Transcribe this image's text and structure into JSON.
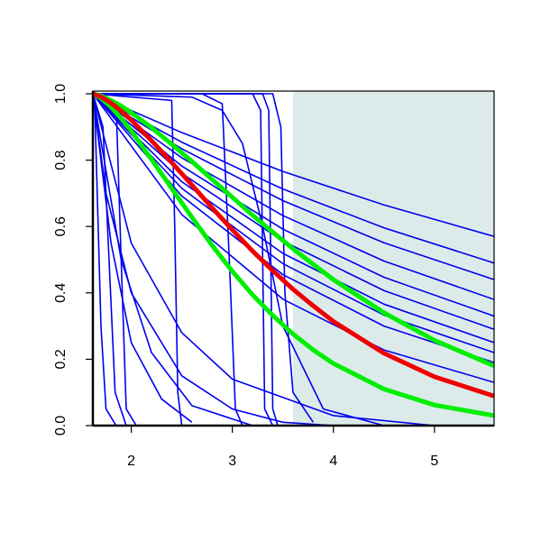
{
  "chart_data": {
    "type": "line",
    "xlim": [
      1.62,
      5.59
    ],
    "ylim": [
      0,
      1
    ],
    "xticks": [
      2,
      3,
      4,
      5
    ],
    "yticks": [
      {
        "value": 0,
        "label": "0.0"
      },
      {
        "value": 0.2,
        "label": "0.2"
      },
      {
        "value": 0.4,
        "label": "0.4"
      },
      {
        "value": 0.6,
        "label": "0.6"
      },
      {
        "value": 0.8,
        "label": "0.8"
      },
      {
        "value": 1,
        "label": "1.0"
      }
    ],
    "shade_from": 3.6,
    "shade_color": "#dcebea",
    "series": [
      {
        "color": "#0000ee",
        "x": [
          1.62,
          2.5,
          3.5,
          4.5,
          5.59
        ],
        "values": [
          1,
          0.883,
          0.766,
          0.665,
          0.57
        ]
      },
      {
        "color": "#0000ee",
        "x": [
          1.62,
          2.5,
          3.5,
          4.5,
          5.59
        ],
        "values": [
          1,
          0.854,
          0.713,
          0.596,
          0.49
        ]
      },
      {
        "color": "#0000ee",
        "x": [
          1.62,
          2.5,
          3.5,
          4.5,
          5.59
        ],
        "values": [
          1,
          0.834,
          0.678,
          0.551,
          0.44
        ]
      },
      {
        "color": "#0000ee",
        "x": [
          1.62,
          2.5,
          3.5,
          4.5,
          5.59
        ],
        "values": [
          1,
          0.807,
          0.633,
          0.496,
          0.38
        ]
      },
      {
        "color": "#0000ee",
        "x": [
          1.62,
          2.5,
          3.5,
          4.5,
          5.59
        ],
        "values": [
          1,
          0.782,
          0.592,
          0.447,
          0.33
        ]
      },
      {
        "color": "#0000ee",
        "x": [
          1.62,
          2.5,
          3.5,
          4.5,
          5.59
        ],
        "values": [
          1,
          0.76,
          0.556,
          0.407,
          0.29
        ]
      },
      {
        "color": "#0000ee",
        "x": [
          1.62,
          2.5,
          3.5,
          4.5,
          5.59
        ],
        "values": [
          1,
          0.735,
          0.519,
          0.366,
          0.25
        ]
      },
      {
        "color": "#0000ee",
        "x": [
          1.62,
          2.5,
          3.5,
          4.5,
          5.59
        ],
        "values": [
          1,
          0.715,
          0.488,
          0.333,
          0.22
        ]
      },
      {
        "color": "#0000ee",
        "x": [
          1.62,
          2.5,
          3.5,
          4.5,
          5.59
        ],
        "values": [
          1,
          0.692,
          0.455,
          0.3,
          0.19
        ]
      },
      {
        "color": "#0000ee",
        "x": [
          1.62,
          2.5,
          3.5,
          4.5,
          5.59
        ],
        "values": [
          1,
          0.636,
          0.381,
          0.228,
          0.13
        ]
      },
      {
        "color": "#0000ee",
        "x": [
          1.62,
          1.64,
          1.7,
          1.75,
          1.85
        ],
        "values": [
          1,
          0.95,
          0.3,
          0.05,
          0
        ]
      },
      {
        "color": "#0000ee",
        "x": [
          1.62,
          1.72,
          1.78,
          1.84,
          1.95
        ],
        "values": [
          1,
          0.9,
          0.5,
          0.1,
          0
        ]
      },
      {
        "color": "#0000ee",
        "x": [
          1.62,
          1.85,
          1.9,
          1.95,
          2.05
        ],
        "values": [
          1,
          0.97,
          0.5,
          0.05,
          0
        ]
      },
      {
        "color": "#0000ee",
        "x": [
          1.62,
          1.8,
          2.0,
          2.3,
          2.6
        ],
        "values": [
          1,
          0.55,
          0.25,
          0.08,
          0.01
        ]
      },
      {
        "color": "#0000ee",
        "x": [
          1.62,
          1.9,
          2.2,
          2.6,
          3.2
        ],
        "values": [
          1,
          0.5,
          0.22,
          0.06,
          0
        ]
      },
      {
        "color": "#0000ee",
        "x": [
          1.62,
          2.0,
          2.5,
          3.0,
          4.0,
          5.0
        ],
        "values": [
          1,
          0.55,
          0.28,
          0.14,
          0.03,
          0
        ]
      },
      {
        "color": "#0000ee",
        "x": [
          1.62,
          2.4,
          2.43,
          2.46,
          2.5
        ],
        "values": [
          1,
          0.98,
          0.6,
          0.1,
          0
        ]
      },
      {
        "color": "#0000ee",
        "x": [
          1.62,
          2.7,
          2.9,
          2.97,
          3.03,
          3.1
        ],
        "values": [
          1,
          1,
          0.97,
          0.5,
          0.05,
          0
        ]
      },
      {
        "color": "#0000ee",
        "x": [
          1.62,
          2.6,
          2.9,
          3.1,
          3.3,
          3.5,
          3.9,
          4.5
        ],
        "values": [
          1,
          0.99,
          0.95,
          0.85,
          0.6,
          0.3,
          0.05,
          0
        ]
      },
      {
        "color": "#0000ee",
        "x": [
          1.62,
          3.2,
          3.28,
          3.3,
          3.32,
          3.4
        ],
        "values": [
          1,
          1,
          0.95,
          0.5,
          0.05,
          0
        ]
      },
      {
        "color": "#0000ee",
        "x": [
          1.62,
          3.3,
          3.36,
          3.38,
          3.4,
          3.45
        ],
        "values": [
          1,
          1,
          0.95,
          0.5,
          0.05,
          0
        ]
      },
      {
        "color": "#0000ee",
        "x": [
          1.62,
          3.4,
          3.48,
          3.52,
          3.6,
          3.8
        ],
        "values": [
          1,
          1,
          0.9,
          0.4,
          0.1,
          0.01
        ]
      },
      {
        "color": "#0000ee",
        "x": [
          1.62,
          1.75,
          2.0,
          2.5,
          3.0,
          3.5,
          4.0
        ],
        "values": [
          1,
          0.7,
          0.4,
          0.15,
          0.05,
          0.01,
          0
        ]
      },
      {
        "color": "#00ee00",
        "x": [
          1.62,
          1.7,
          1.8,
          1.9,
          2.0,
          2.2,
          2.4,
          2.6,
          2.8,
          3.0,
          3.2,
          3.4,
          3.6,
          3.8,
          4.0,
          4.5,
          5.0,
          5.59
        ],
        "values": [
          1,
          0.994,
          0.98,
          0.963,
          0.943,
          0.898,
          0.848,
          0.796,
          0.742,
          0.688,
          0.634,
          0.583,
          0.533,
          0.486,
          0.44,
          0.34,
          0.257,
          0.18
        ]
      },
      {
        "color": "#00ee00",
        "x": [
          1.62,
          1.7,
          1.8,
          1.9,
          2.0,
          2.2,
          2.4,
          2.6,
          2.8,
          3.0,
          3.2,
          3.4,
          3.6,
          3.8,
          4.0,
          4.5,
          5.0,
          5.59
        ],
        "values": [
          1,
          0.987,
          0.96,
          0.926,
          0.888,
          0.802,
          0.715,
          0.628,
          0.543,
          0.465,
          0.394,
          0.332,
          0.276,
          0.228,
          0.187,
          0.11,
          0.062,
          0.03
        ]
      },
      {
        "color": "#ee0000",
        "x": [
          1.62,
          1.7,
          1.8,
          1.9,
          2.0,
          2.2,
          2.4,
          2.6,
          2.8,
          3.0,
          3.2,
          3.4,
          3.6,
          3.8,
          4.0,
          4.5,
          5.0,
          5.59
        ],
        "values": [
          1,
          0.991,
          0.972,
          0.948,
          0.921,
          0.859,
          0.793,
          0.725,
          0.656,
          0.59,
          0.526,
          0.467,
          0.411,
          0.361,
          0.314,
          0.218,
          0.147,
          0.089
        ]
      }
    ]
  }
}
